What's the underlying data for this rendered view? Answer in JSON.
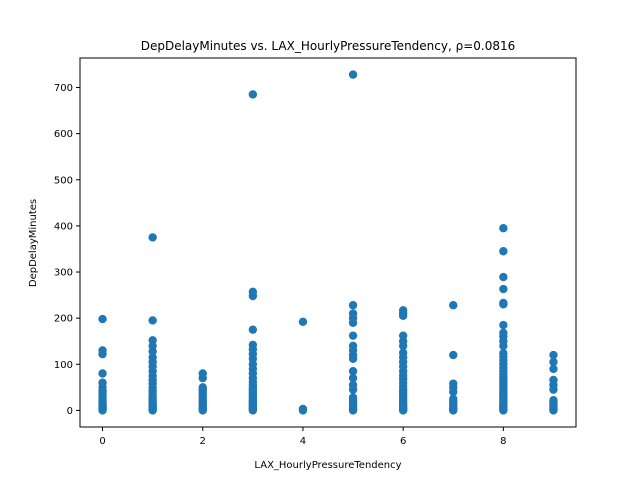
{
  "chart_data": {
    "type": "scatter",
    "title": "DepDelayMinutes vs. LAX_HourlyPressureTendency, ρ=0.0816",
    "xlabel": "LAX_HourlyPressureTendency",
    "ylabel": "DepDelayMinutes",
    "xlim": [
      -0.45,
      9.45
    ],
    "ylim": [
      -36,
      764
    ],
    "x_ticks": [
      0,
      2,
      4,
      6,
      8
    ],
    "y_ticks": [
      0,
      100,
      200,
      300,
      400,
      500,
      600,
      700
    ],
    "grid": false,
    "marker_color": "#1f77b4",
    "series": [
      {
        "points": [
          [
            0,
            0
          ],
          [
            0,
            2
          ],
          [
            0,
            4
          ],
          [
            0,
            6
          ],
          [
            0,
            8
          ],
          [
            0,
            10
          ],
          [
            0,
            13
          ],
          [
            0,
            16
          ],
          [
            0,
            20
          ],
          [
            0,
            25
          ],
          [
            0,
            30
          ],
          [
            0,
            36
          ],
          [
            0,
            42
          ],
          [
            0,
            50
          ],
          [
            0,
            60
          ],
          [
            0,
            80
          ],
          [
            0,
            122
          ],
          [
            0,
            130
          ],
          [
            0,
            198
          ],
          [
            1,
            0
          ],
          [
            1,
            2
          ],
          [
            1,
            4
          ],
          [
            1,
            6
          ],
          [
            1,
            9
          ],
          [
            1,
            12
          ],
          [
            1,
            15
          ],
          [
            1,
            19
          ],
          [
            1,
            24
          ],
          [
            1,
            29
          ],
          [
            1,
            35
          ],
          [
            1,
            42
          ],
          [
            1,
            50
          ],
          [
            1,
            58
          ],
          [
            1,
            66
          ],
          [
            1,
            75
          ],
          [
            1,
            85
          ],
          [
            1,
            95
          ],
          [
            1,
            105
          ],
          [
            1,
            115
          ],
          [
            1,
            128
          ],
          [
            1,
            140
          ],
          [
            1,
            152
          ],
          [
            1,
            195
          ],
          [
            1,
            375
          ],
          [
            2,
            0
          ],
          [
            2,
            2
          ],
          [
            2,
            5
          ],
          [
            2,
            8
          ],
          [
            2,
            12
          ],
          [
            2,
            16
          ],
          [
            2,
            20
          ],
          [
            2,
            25
          ],
          [
            2,
            30
          ],
          [
            2,
            35
          ],
          [
            2,
            40
          ],
          [
            2,
            45
          ],
          [
            2,
            50
          ],
          [
            2,
            70
          ],
          [
            2,
            80
          ],
          [
            3,
            0
          ],
          [
            3,
            2
          ],
          [
            3,
            4
          ],
          [
            3,
            6
          ],
          [
            3,
            9
          ],
          [
            3,
            12
          ],
          [
            3,
            15
          ],
          [
            3,
            18
          ],
          [
            3,
            22
          ],
          [
            3,
            26
          ],
          [
            3,
            30
          ],
          [
            3,
            35
          ],
          [
            3,
            40
          ],
          [
            3,
            45
          ],
          [
            3,
            50
          ],
          [
            3,
            56
          ],
          [
            3,
            62
          ],
          [
            3,
            70
          ],
          [
            3,
            80
          ],
          [
            3,
            90
          ],
          [
            3,
            100
          ],
          [
            3,
            112
          ],
          [
            3,
            122
          ],
          [
            3,
            132
          ],
          [
            3,
            142
          ],
          [
            3,
            175
          ],
          [
            3,
            248
          ],
          [
            3,
            257
          ],
          [
            3,
            685
          ],
          [
            4,
            0
          ],
          [
            4,
            3
          ],
          [
            4,
            192
          ],
          [
            5,
            0
          ],
          [
            5,
            2
          ],
          [
            5,
            5
          ],
          [
            5,
            8
          ],
          [
            5,
            12
          ],
          [
            5,
            16
          ],
          [
            5,
            22
          ],
          [
            5,
            28
          ],
          [
            5,
            45
          ],
          [
            5,
            55
          ],
          [
            5,
            70
          ],
          [
            5,
            85
          ],
          [
            5,
            112
          ],
          [
            5,
            120
          ],
          [
            5,
            130
          ],
          [
            5,
            140
          ],
          [
            5,
            162
          ],
          [
            5,
            190
          ],
          [
            5,
            200
          ],
          [
            5,
            210
          ],
          [
            5,
            228
          ],
          [
            5,
            728
          ],
          [
            6,
            0
          ],
          [
            6,
            2
          ],
          [
            6,
            4
          ],
          [
            6,
            7
          ],
          [
            6,
            10
          ],
          [
            6,
            14
          ],
          [
            6,
            18
          ],
          [
            6,
            23
          ],
          [
            6,
            28
          ],
          [
            6,
            34
          ],
          [
            6,
            40
          ],
          [
            6,
            46
          ],
          [
            6,
            52
          ],
          [
            6,
            60
          ],
          [
            6,
            68
          ],
          [
            6,
            76
          ],
          [
            6,
            85
          ],
          [
            6,
            95
          ],
          [
            6,
            105
          ],
          [
            6,
            115
          ],
          [
            6,
            125
          ],
          [
            6,
            140
          ],
          [
            6,
            150
          ],
          [
            6,
            162
          ],
          [
            6,
            205
          ],
          [
            6,
            210
          ],
          [
            6,
            217
          ],
          [
            7,
            0
          ],
          [
            7,
            2
          ],
          [
            7,
            5
          ],
          [
            7,
            9
          ],
          [
            7,
            14
          ],
          [
            7,
            20
          ],
          [
            7,
            25
          ],
          [
            7,
            40
          ],
          [
            7,
            50
          ],
          [
            7,
            58
          ],
          [
            7,
            120
          ],
          [
            7,
            228
          ],
          [
            8,
            0
          ],
          [
            8,
            2
          ],
          [
            8,
            4
          ],
          [
            8,
            6
          ],
          [
            8,
            8
          ],
          [
            8,
            11
          ],
          [
            8,
            14
          ],
          [
            8,
            17
          ],
          [
            8,
            20
          ],
          [
            8,
            24
          ],
          [
            8,
            28
          ],
          [
            8,
            32
          ],
          [
            8,
            36
          ],
          [
            8,
            40
          ],
          [
            8,
            45
          ],
          [
            8,
            50
          ],
          [
            8,
            55
          ],
          [
            8,
            60
          ],
          [
            8,
            66
          ],
          [
            8,
            72
          ],
          [
            8,
            78
          ],
          [
            8,
            85
          ],
          [
            8,
            92
          ],
          [
            8,
            100
          ],
          [
            8,
            108
          ],
          [
            8,
            116
          ],
          [
            8,
            124
          ],
          [
            8,
            140
          ],
          [
            8,
            150
          ],
          [
            8,
            160
          ],
          [
            8,
            168
          ],
          [
            8,
            185
          ],
          [
            8,
            230
          ],
          [
            8,
            233
          ],
          [
            8,
            263
          ],
          [
            8,
            289
          ],
          [
            8,
            345
          ],
          [
            8,
            395
          ],
          [
            9,
            0
          ],
          [
            9,
            2
          ],
          [
            9,
            4
          ],
          [
            9,
            7
          ],
          [
            9,
            10
          ],
          [
            9,
            14
          ],
          [
            9,
            18
          ],
          [
            9,
            22
          ],
          [
            9,
            45
          ],
          [
            9,
            55
          ],
          [
            9,
            66
          ],
          [
            9,
            90
          ],
          [
            9,
            105
          ],
          [
            9,
            120
          ]
        ]
      }
    ]
  }
}
